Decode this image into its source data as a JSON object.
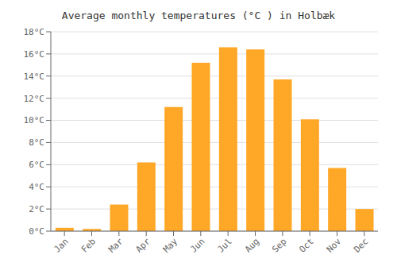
{
  "chart_data": {
    "type": "bar",
    "title": "Average monthly temperatures (°C ) in Holbæk",
    "categories": [
      "Jan",
      "Feb",
      "Mar",
      "Apr",
      "May",
      "Jun",
      "Jul",
      "Aug",
      "Sep",
      "Oct",
      "Nov",
      "Dec"
    ],
    "values": [
      0.3,
      0.2,
      2.4,
      6.2,
      11.2,
      15.2,
      16.6,
      16.4,
      13.7,
      10.1,
      5.7,
      2.0
    ],
    "color": "#FFA726",
    "ylim": [
      0,
      18
    ],
    "yticks": [
      {
        "value": 0,
        "label": "0°C"
      },
      {
        "value": 2,
        "label": "2°C"
      },
      {
        "value": 4,
        "label": "4°C"
      },
      {
        "value": 6,
        "label": "6°C"
      },
      {
        "value": 8,
        "label": "8°C"
      },
      {
        "value": 10,
        "label": "10°C"
      },
      {
        "value": 12,
        "label": "12°C"
      },
      {
        "value": 14,
        "label": "14°C"
      },
      {
        "value": 16,
        "label": "16°C"
      },
      {
        "value": 18,
        "label": "18°C"
      }
    ],
    "grid": true
  }
}
